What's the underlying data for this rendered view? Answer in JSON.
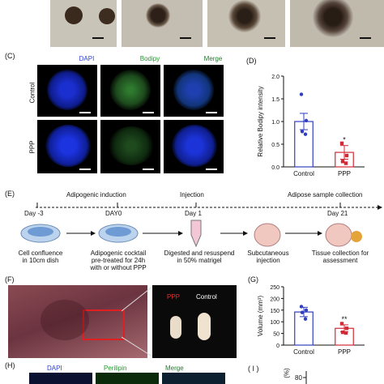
{
  "panel_c": {
    "letter": "(C)",
    "headers": [
      "DAPI",
      "Bodipy",
      "Merge"
    ],
    "header_colors": [
      "#2b3fd6",
      "#1f9a2a",
      "#1f7a2a"
    ],
    "rows": [
      "Control",
      "PPP"
    ]
  },
  "panel_d": {
    "letter": "(D)",
    "chart_data": {
      "type": "bar",
      "categories": [
        "Control",
        "PPP"
      ],
      "values": [
        1.0,
        0.32
      ],
      "errors": [
        0.18,
        0.15
      ],
      "points": [
        [
          1.6,
          1.02,
          0.78,
          0.72
        ],
        [
          0.52,
          0.25,
          0.12,
          0.08
        ]
      ],
      "colors": [
        "#2f3fc0",
        "#d12a36"
      ],
      "ylabel": "Relative Bodipy intensity",
      "ylim": [
        0,
        2.0
      ],
      "yticks": [
        0.0,
        0.5,
        1.0,
        1.5,
        2.0
      ],
      "yticklabels": [
        "0.0",
        "0.5",
        "1.0",
        "1.5",
        "2.0"
      ],
      "significance": "*"
    }
  },
  "panel_e": {
    "letter": "(E)",
    "day_labels": [
      "Day -3",
      "DAY0",
      "Day 1",
      "Day 21"
    ],
    "phase_labels": [
      "Adipogenic induction",
      "Injection",
      "Adipose sample collection"
    ],
    "steps": [
      "Cell confluence\nin 10cm dish",
      "Adipogenic cocktail\npre-treated for 24h\nwith or without PPP",
      "Digested and resuspend\nin 50% matrigel",
      "Subcutaneous\ninjection",
      "Tissue collection for\nassessment"
    ]
  },
  "panel_f": {
    "letter": "(F)",
    "label_ppp": "PPP",
    "label_control": "Control",
    "ppp_color": "#e53030"
  },
  "panel_g": {
    "letter": "(G)",
    "chart_data": {
      "type": "bar",
      "categories": [
        "Control",
        "PPP"
      ],
      "values": [
        142,
        72
      ],
      "errors": [
        20,
        15
      ],
      "points": [
        [
          165,
          150,
          140,
          112
        ],
        [
          92,
          72,
          55,
          52
        ]
      ],
      "colors": [
        "#2f3fc0",
        "#d12a36"
      ],
      "ylabel": "Volume (mm³)",
      "ylim": [
        0,
        250
      ],
      "yticks": [
        0,
        50,
        100,
        150,
        200,
        250
      ],
      "yticklabels": [
        "0",
        "50",
        "100",
        "150",
        "200",
        "250"
      ],
      "significance": "**"
    }
  },
  "panel_h": {
    "letter": "(H)",
    "headers": [
      "DAPI",
      "Perilipin",
      "Merge"
    ],
    "header_colors": [
      "#2b3fd6",
      "#1f9a2a",
      "#1f7a2a"
    ]
  },
  "panel_i": {
    "letter": "( I )",
    "ylabel_fragment": "(%)",
    "tick": "80"
  }
}
